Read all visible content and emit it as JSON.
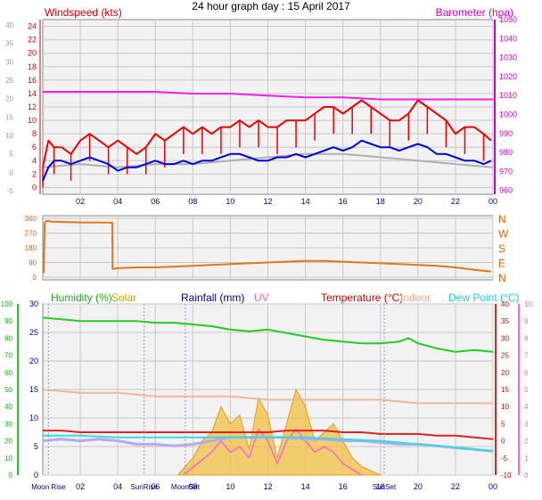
{
  "title": "24 hour graph day : 15 April 2017",
  "colors": {
    "wind_avg": "#0000dd",
    "wind_gust": "#ee0000",
    "wind_grey": "#b0b0b0",
    "barometer": "#ee22ee",
    "direction": "#e07818",
    "humidity": "#22cc22",
    "solar": "#f0c040",
    "rainfall": "#000088",
    "uv": "#ff66cc",
    "temperature": "#dd2222",
    "indoor": "#f0b898",
    "dewpoint": "#33dddd",
    "apparent": "#b8a8f0",
    "plot_bg": "#f2f2f2",
    "grid": "#c8c8c8"
  },
  "chart_data": [
    {
      "type": "line",
      "panel": "wind",
      "title": "24 hour graph day : 15 April 2017",
      "left_axis_label": "Windspeed (kts)",
      "right_axis_label": "Barometer (hpa)",
      "x_ticks": [
        "02",
        "04",
        "06",
        "08",
        "10",
        "12",
        "14",
        "16",
        "18",
        "20",
        "22",
        "00"
      ],
      "x_range_hours": [
        0,
        24
      ],
      "left_ticks_outer": [
        "-5",
        "0",
        "5",
        "10",
        "15",
        "20",
        "25",
        "30",
        "35",
        "40"
      ],
      "left_ticks": [
        "0",
        "2",
        "4",
        "6",
        "8",
        "10",
        "12",
        "14",
        "16",
        "18",
        "20",
        "22",
        "24"
      ],
      "left_range": [
        -1,
        25
      ],
      "right_ticks": [
        "960",
        "970",
        "980",
        "990",
        "1000",
        "1010",
        "1020",
        "1030",
        "1040",
        "1050"
      ],
      "right_range": [
        958,
        1050
      ],
      "series": [
        {
          "role": "gust",
          "x": [
            0.0,
            0.3,
            0.6,
            1.0,
            1.5,
            2.0,
            2.5,
            3.0,
            3.5,
            4.0,
            4.5,
            5.0,
            5.5,
            6.0,
            6.5,
            7.0,
            7.5,
            8.0,
            8.5,
            9.0,
            9.5,
            10.0,
            10.5,
            11.0,
            11.5,
            12.0,
            12.5,
            13.0,
            13.5,
            14.0,
            14.5,
            15.0,
            15.5,
            16.0,
            16.5,
            17.0,
            17.5,
            18.0,
            18.5,
            19.0,
            19.5,
            20.0,
            20.5,
            21.0,
            21.5,
            22.0,
            22.5,
            23.0,
            23.5,
            23.9
          ],
          "y": [
            3,
            7,
            6,
            6,
            5,
            7,
            8,
            7,
            6,
            7,
            6,
            5,
            6,
            8,
            7,
            8,
            9,
            8,
            9,
            8,
            9,
            9,
            10,
            9,
            10,
            9,
            9,
            10,
            10,
            10,
            11,
            12,
            12,
            11,
            12,
            13,
            12,
            11,
            10,
            10,
            11,
            13,
            12,
            11,
            10,
            8,
            9,
            9,
            8,
            7
          ]
        },
        {
          "role": "average",
          "x": [
            0.0,
            0.3,
            0.6,
            1.0,
            1.5,
            2.0,
            2.5,
            3.0,
            3.5,
            4.0,
            4.5,
            5.0,
            5.5,
            6.0,
            6.5,
            7.0,
            7.5,
            8.0,
            8.5,
            9.0,
            9.5,
            10.0,
            10.5,
            11.0,
            11.5,
            12.0,
            12.5,
            13.0,
            13.5,
            14.0,
            14.5,
            15.0,
            15.5,
            16.0,
            16.5,
            17.0,
            17.5,
            18.0,
            18.5,
            19.0,
            19.5,
            20.0,
            20.5,
            21.0,
            21.5,
            22.0,
            22.5,
            23.0,
            23.5,
            23.9
          ],
          "y": [
            1,
            3,
            4,
            4,
            3.5,
            4,
            4.5,
            4,
            3.5,
            2.5,
            3,
            3,
            3.5,
            4,
            3.5,
            3.5,
            4,
            3.5,
            4,
            4,
            4.5,
            5,
            5,
            4.5,
            4,
            4,
            4.5,
            4.5,
            5,
            4.5,
            5,
            5.5,
            6,
            5.5,
            6,
            7,
            6.5,
            6,
            6,
            5.5,
            6,
            6.5,
            6,
            5,
            5,
            4.5,
            4,
            4,
            3.5,
            4
          ]
        },
        {
          "role": "grey",
          "x": [
            0,
            2,
            4,
            6,
            8,
            10,
            12,
            14,
            16,
            18,
            20,
            22,
            24
          ],
          "y": [
            3,
            3.5,
            3,
            3.5,
            3.5,
            4,
            4.5,
            5,
            5,
            4.5,
            4,
            3.5,
            3
          ]
        },
        {
          "role": "barometer",
          "x": [
            0,
            2,
            4,
            6,
            8,
            10,
            12,
            14,
            16,
            18,
            20,
            22,
            24
          ],
          "y": [
            1012,
            1012,
            1012,
            1012,
            1011,
            1011,
            1010,
            1009,
            1009,
            1008,
            1008,
            1008,
            1008
          ]
        }
      ]
    },
    {
      "type": "line",
      "panel": "direction",
      "left_ticks": [
        "0",
        "90",
        "180",
        "270",
        "360"
      ],
      "left_range": [
        0,
        360
      ],
      "right_ticks": [
        "N",
        "E",
        "S",
        "W",
        "N"
      ],
      "x_range_hours": [
        0,
        24
      ],
      "series": [
        {
          "role": "direction",
          "x": [
            0.0,
            0.05,
            0.1,
            0.2,
            0.5,
            1.0,
            2.0,
            3.0,
            3.7,
            3.72,
            4.0,
            5.0,
            6.0,
            7.0,
            8.0,
            9.0,
            10.0,
            11.0,
            12.0,
            13.0,
            14.0,
            15.0,
            16.0,
            17.0,
            18.0,
            19.0,
            20.0,
            21.0,
            22.0,
            23.0,
            23.9
          ],
          "y": [
            30,
            30,
            330,
            345,
            340,
            338,
            335,
            335,
            333,
            50,
            55,
            60,
            60,
            65,
            70,
            75,
            80,
            85,
            90,
            95,
            100,
            100,
            95,
            90,
            85,
            80,
            75,
            70,
            60,
            45,
            35
          ]
        }
      ]
    },
    {
      "type": "line",
      "panel": "temperature",
      "legend": [
        "Humidity (%)",
        "Solar",
        "Rainfall (mm)",
        "UV",
        "Temperature (°C)",
        "Indoor",
        "Dew Point (°C)"
      ],
      "x_ticks": [
        "02",
        "04",
        "06",
        "08",
        "10",
        "12",
        "14",
        "16",
        "18",
        "20",
        "22",
        "00"
      ],
      "x_range_hours": [
        0,
        24
      ],
      "humidity_ticks": [
        "0",
        "10",
        "20",
        "30",
        "40",
        "50",
        "60",
        "70",
        "80",
        "90",
        "100"
      ],
      "humidity_range": [
        0,
        100
      ],
      "rain_ticks": [
        "0",
        "5",
        "10",
        "15",
        "20",
        "25",
        "30"
      ],
      "rain_range": [
        0,
        30
      ],
      "temp_ticks": [
        "-10",
        "-5",
        "0",
        "5",
        "10",
        "15",
        "20",
        "25",
        "30",
        "35",
        "40"
      ],
      "temp_range": [
        -10,
        40
      ],
      "uv_ticks": [
        "0",
        "1",
        "2",
        "3",
        "4",
        "5",
        "6",
        "7",
        "8",
        "9",
        "10"
      ],
      "uv_range": [
        0,
        10
      ],
      "events": [
        {
          "label": "Moon Rise",
          "hour": 0.3
        },
        {
          "label": "SunRise",
          "hour": 5.4
        },
        {
          "label": "MoonSet",
          "hour": 7.6
        },
        {
          "label": "SunSet",
          "hour": 18.2
        }
      ],
      "series": [
        {
          "role": "humidity",
          "x": [
            0,
            1,
            2,
            3,
            4,
            5,
            6,
            7,
            8,
            9,
            10,
            11,
            12,
            13,
            14,
            15,
            16,
            17,
            18,
            19,
            19.5,
            20,
            21,
            22,
            23,
            24
          ],
          "y": [
            92,
            91,
            90,
            90,
            90,
            90,
            89,
            89,
            88,
            87,
            85,
            84,
            85,
            83,
            81,
            79,
            78,
            77,
            77,
            78,
            80,
            77,
            74,
            72,
            73,
            72
          ]
        },
        {
          "role": "indoor",
          "x": [
            0,
            2,
            4,
            6,
            8,
            10,
            12,
            14,
            16,
            18,
            20,
            22,
            24
          ],
          "y": [
            15,
            14,
            14,
            13,
            13,
            13,
            12,
            12,
            12,
            12,
            11,
            11,
            11
          ]
        },
        {
          "role": "temperature",
          "x": [
            0,
            1,
            2,
            3,
            4,
            5,
            6,
            7,
            8,
            9,
            10,
            11,
            12,
            13,
            14,
            15,
            16,
            17,
            18,
            19,
            20,
            21,
            22,
            23,
            24
          ],
          "y": [
            3,
            3,
            2.5,
            2.5,
            2.5,
            2.5,
            2.5,
            2.5,
            2.5,
            2.5,
            2.5,
            2.5,
            2.5,
            3,
            3,
            3,
            2.5,
            2.5,
            2,
            2,
            2,
            1.5,
            1.5,
            1,
            0.5
          ]
        },
        {
          "role": "dewpoint",
          "x": [
            0,
            2,
            4,
            6,
            8,
            10,
            12,
            14,
            16,
            18,
            20,
            22,
            24
          ],
          "y": [
            1.5,
            1.5,
            1,
            1,
            1,
            1,
            1,
            1,
            0.5,
            0,
            -1,
            -2,
            -3
          ]
        },
        {
          "role": "apparent",
          "x": [
            0,
            1,
            2,
            3,
            4,
            5,
            6,
            7,
            8,
            9,
            10,
            11,
            12,
            13,
            14,
            15,
            16,
            17,
            18,
            19,
            20,
            21,
            22,
            23,
            24
          ],
          "y": [
            0,
            0.5,
            0,
            0.5,
            0,
            -1,
            -1,
            -1.5,
            -1,
            0,
            1,
            1,
            1,
            1,
            0.5,
            0.5,
            0,
            0,
            -0.5,
            -1,
            -1,
            -1.5,
            -2,
            -2.5,
            -3
          ]
        },
        {
          "role": "solar",
          "x": [
            7.2,
            8,
            8.5,
            9,
            9.5,
            10,
            10.5,
            11,
            11.5,
            12,
            12.5,
            13,
            13.5,
            14,
            14.5,
            15,
            15.5,
            16,
            16.5,
            17,
            17.5,
            18
          ],
          "y": [
            0,
            2,
            4,
            5,
            8,
            6,
            7,
            3,
            9,
            7,
            2,
            6,
            10,
            8,
            4,
            5,
            6,
            4,
            2,
            1,
            0.5,
            0
          ]
        },
        {
          "role": "uv",
          "x": [
            7.5,
            9,
            9.5,
            10,
            10.5,
            11,
            11.5,
            12,
            12.5,
            13,
            13.5,
            14,
            14.5,
            15,
            15.5,
            16,
            16.5,
            17
          ],
          "y": [
            0,
            2,
            3,
            2,
            2.5,
            1.5,
            4,
            3,
            1,
            3,
            4,
            3,
            2,
            2.5,
            2,
            1,
            0.5,
            0
          ]
        }
      ]
    }
  ]
}
